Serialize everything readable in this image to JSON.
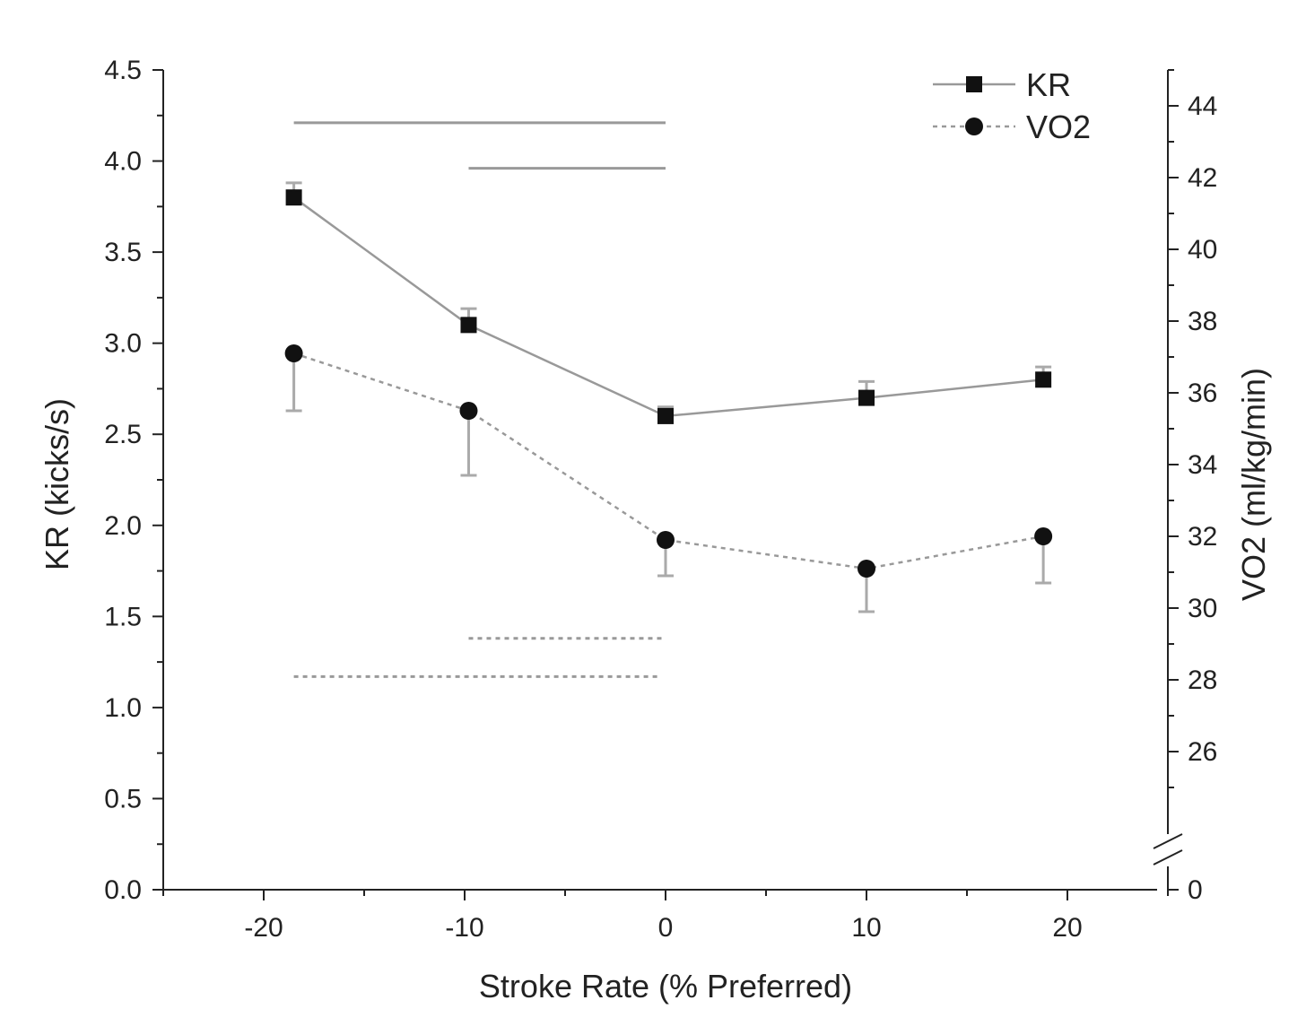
{
  "chart_data": {
    "type": "line",
    "title": "",
    "xlabel": "Stroke Rate (% Preferred)",
    "ylabel": "KR (kicks/s)",
    "y2label": "VO2 (ml/kg/min)",
    "xlim": [
      -25,
      25
    ],
    "ylim": [
      0,
      4.5
    ],
    "y2lim": [
      24,
      45
    ],
    "y2_axis_break": true,
    "y2_break_label": "0",
    "grid": false,
    "legend_position": "top-right",
    "xticks": [
      -20,
      -10,
      0,
      10,
      20
    ],
    "xtick_labels": [
      "-20",
      "-10",
      "0",
      "10",
      "20"
    ],
    "yticks": [
      0,
      0.5,
      1.0,
      1.5,
      2.0,
      2.5,
      3.0,
      3.5,
      4.0,
      4.5
    ],
    "ytick_labels": [
      "0.0",
      "0.5",
      "1.0",
      "1.5",
      "2.0",
      "2.5",
      "3.0",
      "3.5",
      "4.0",
      "4.5"
    ],
    "y2ticks": [
      26,
      28,
      30,
      32,
      34,
      36,
      38,
      40,
      42,
      44
    ],
    "y2tick_labels": [
      "26",
      "28",
      "30",
      "32",
      "34",
      "36",
      "38",
      "40",
      "42",
      "44"
    ],
    "series": [
      {
        "name": "KR",
        "axis": "left",
        "marker": "square",
        "line_style": "solid",
        "color": "#111111",
        "line_color": "#999999",
        "x": [
          -18.5,
          -9.8,
          0,
          10,
          18.8
        ],
        "y": [
          3.8,
          3.1,
          2.6,
          2.7,
          2.8
        ],
        "error": [
          0.08,
          0.09,
          0.05,
          0.09,
          0.07
        ]
      },
      {
        "name": "VO2",
        "axis": "right",
        "marker": "circle",
        "line_style": "dotted",
        "color": "#111111",
        "line_color": "#999999",
        "x": [
          -18.5,
          -9.8,
          0,
          10,
          18.8
        ],
        "y": [
          37.1,
          35.5,
          31.9,
          31.1,
          32.0
        ],
        "error": [
          1.6,
          1.8,
          1.0,
          1.2,
          1.3
        ]
      }
    ],
    "significance_bars": [
      {
        "series": "KR",
        "style": "solid",
        "axis": "left",
        "x_start": -18.5,
        "x_end": 0,
        "y": 4.21
      },
      {
        "series": "KR",
        "style": "solid",
        "axis": "left",
        "x_start": -9.8,
        "x_end": 0,
        "y": 3.96
      },
      {
        "series": "VO2",
        "style": "dotted",
        "axis": "left",
        "x_start": -9.8,
        "x_end": 0,
        "y": 1.38
      },
      {
        "series": "VO2",
        "style": "dotted",
        "axis": "left",
        "x_start": -18.5,
        "x_end": -0.3,
        "y": 1.17
      }
    ],
    "colors": {
      "axis": "#222222",
      "marker": "#111111",
      "line": "#999999",
      "error_bar": "#aaaaaa",
      "significance": "#999999"
    }
  }
}
